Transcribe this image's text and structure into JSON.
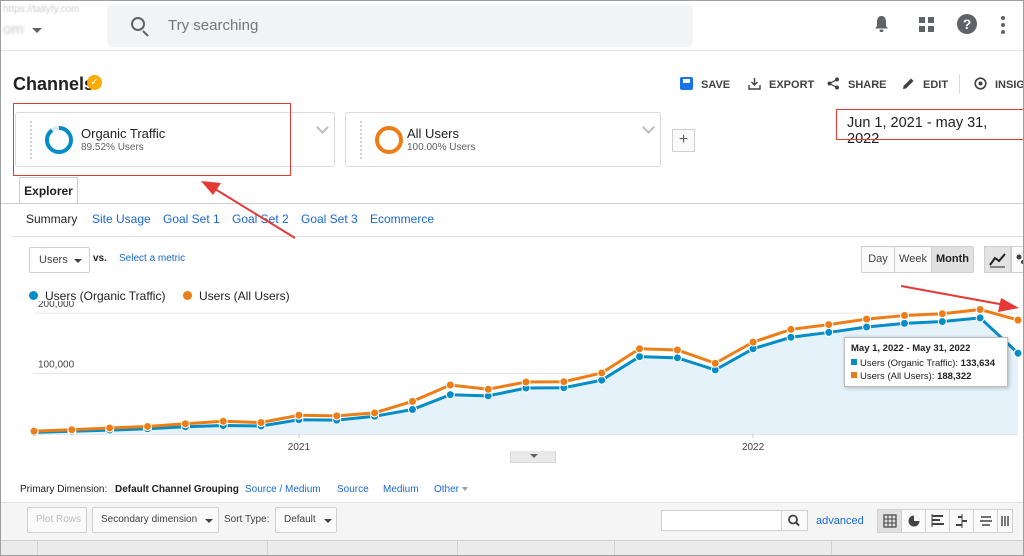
{
  "header": {
    "account_url": "https://tallyfy.com",
    "account_name": "om",
    "search_placeholder": "Try searching",
    "icons": [
      "bell-icon",
      "apps-icon",
      "help-icon",
      "more-vert-icon"
    ]
  },
  "report": {
    "title": "Channels",
    "actions": [
      {
        "label": "SAVE",
        "icon": "save-icon"
      },
      {
        "label": "EXPORT",
        "icon": "export-icon"
      },
      {
        "label": "SHARE",
        "icon": "share-icon"
      },
      {
        "label": "EDIT",
        "icon": "edit-icon"
      },
      {
        "label": "INSIGHTS",
        "icon": "insights-icon"
      }
    ]
  },
  "segments": [
    {
      "name": "Organic Traffic",
      "share": "89.52% Users",
      "color": "#058dc7",
      "fraction": 0.8952
    },
    {
      "name": "All Users",
      "share": "100.00% Users",
      "color": "#ed7e17",
      "fraction": 1.0
    }
  ],
  "add_segment_label": "+",
  "date_range": "Jun 1, 2021 - may 31, 2022",
  "tabs": {
    "main": "Explorer",
    "sub": [
      "Summary",
      "Site Usage",
      "Goal Set 1",
      "Goal Set 2",
      "Goal Set 3",
      "Ecommerce"
    ]
  },
  "chart_controls": {
    "metric": "Users",
    "vs": "vs.",
    "select_metric": "Select a metric",
    "periods": [
      "Day",
      "Week",
      "Month"
    ],
    "active_period": "Month"
  },
  "chart_data": {
    "type": "line",
    "series": [
      {
        "name": "Users (Organic Traffic)",
        "color": "#058dc7",
        "area": true,
        "values": [
          2600,
          4500,
          6500,
          8600,
          12000,
          14000,
          13300,
          23500,
          23000,
          29300,
          40500,
          65000,
          63000,
          76000,
          76500,
          89000,
          128000,
          126000,
          106000,
          141000,
          160000,
          168000,
          177000,
          183000,
          186000,
          192000,
          133634
        ]
      },
      {
        "name": "Users (All Users)",
        "color": "#ed7e17",
        "area": false,
        "values": [
          4800,
          7000,
          10000,
          12500,
          17000,
          21000,
          19000,
          31000,
          30000,
          35000,
          54000,
          81000,
          74000,
          86000,
          86500,
          101000,
          141000,
          139000,
          117000,
          152000,
          173000,
          181000,
          190000,
          196000,
          199000,
          206000,
          188322
        ]
      }
    ],
    "y_ticks": [
      "100,000",
      "200,000"
    ],
    "x_ticks": [
      "2021",
      "2022"
    ],
    "ylim": [
      0,
      220000
    ],
    "legend_position": "top-left",
    "tooltip": {
      "title": "May 1, 2022 - May 31, 2022",
      "rows": [
        {
          "label": "Users (Organic Traffic):",
          "value": "133,634",
          "color": "#058dc7"
        },
        {
          "label": "Users (All Users):",
          "value": "188,322",
          "color": "#ed7e17"
        }
      ]
    }
  },
  "dimensions": {
    "label": "Primary Dimension:",
    "active": "Default Channel Grouping",
    "options": [
      "Source / Medium",
      "Source",
      "Medium",
      "Other"
    ]
  },
  "table_toolbar": {
    "plot_rows": "Plot Rows",
    "secondary_dimension": "Secondary dimension",
    "sort_type_label": "Sort Type:",
    "sort_type": "Default",
    "advanced": "advanced"
  }
}
